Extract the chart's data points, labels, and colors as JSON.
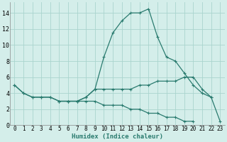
{
  "x_values": [
    0,
    1,
    2,
    3,
    4,
    5,
    6,
    7,
    8,
    9,
    10,
    11,
    12,
    13,
    14,
    15,
    16,
    17,
    18,
    19,
    20,
    21,
    22,
    23
  ],
  "line1": [
    5,
    4,
    3.5,
    3.5,
    3.5,
    3.0,
    3.0,
    3.0,
    3.5,
    4.5,
    8.5,
    11.5,
    13.0,
    14.0,
    14.0,
    14.5,
    11.0,
    8.5,
    8.0,
    6.5,
    5.0,
    4.0,
    3.5,
    0.5
  ],
  "line2": [
    5,
    4,
    3.5,
    3.5,
    3.5,
    3.0,
    3.0,
    3.0,
    3.5,
    4.5,
    4.5,
    4.5,
    4.5,
    4.5,
    5.0,
    5.0,
    5.5,
    5.5,
    5.5,
    6.0,
    6.0,
    4.5,
    3.5,
    null
  ],
  "line3": [
    null,
    null,
    null,
    null,
    null,
    3.0,
    3.0,
    3.0,
    3.0,
    3.0,
    2.5,
    2.5,
    2.5,
    2.0,
    2.0,
    1.5,
    1.5,
    1.0,
    1.0,
    0.5,
    0.5,
    null,
    null,
    null
  ],
  "line_color": "#2a7b6f",
  "bg_color": "#d4eeea",
  "grid_color": "#aad4ce",
  "xlabel": "Humidex (Indice chaleur)",
  "ylim": [
    0,
    15
  ],
  "xlim": [
    -0.5,
    23.5
  ],
  "yticks": [
    0,
    2,
    4,
    6,
    8,
    10,
    12,
    14
  ],
  "xticks": [
    0,
    1,
    2,
    3,
    4,
    5,
    6,
    7,
    8,
    9,
    10,
    11,
    12,
    13,
    14,
    15,
    16,
    17,
    18,
    19,
    20,
    21,
    22,
    23
  ]
}
